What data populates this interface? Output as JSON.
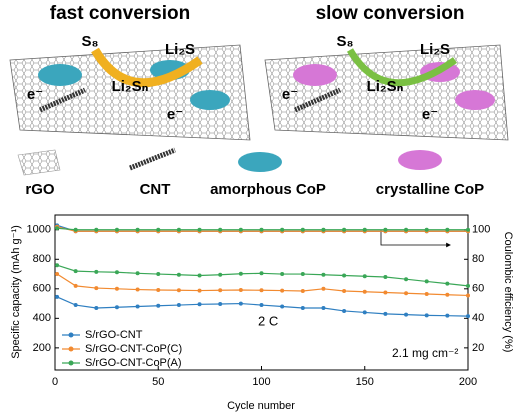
{
  "schematic": {
    "fast_title": "fast conversion",
    "slow_title": "slow conversion",
    "s8": "S₈",
    "li2s": "Li₂S",
    "li2sn": "Li₂Sₙ",
    "electron": "e⁻",
    "rgo": "rGO",
    "cnt": "CNT",
    "amorphous": "amorphous CoP",
    "crystalline": "crystalline CoP"
  },
  "chart_data": {
    "type": "line",
    "x_label": "Cycle number",
    "y_label": "Specific capacity (mAh g⁻¹)",
    "y2_label": "Coulombic efficiency (%)",
    "annotations": [
      "2 C",
      "2.1 mg cm⁻²"
    ],
    "x": [
      1,
      10,
      20,
      30,
      40,
      50,
      60,
      70,
      80,
      90,
      100,
      110,
      120,
      130,
      140,
      150,
      160,
      170,
      180,
      190,
      200
    ],
    "xlim": [
      0,
      200
    ],
    "xticks": [
      0,
      50,
      100,
      150,
      200
    ],
    "ylim": [
      50,
      1100
    ],
    "yticks": [
      200,
      400,
      600,
      800,
      1000
    ],
    "y2lim": [
      5,
      110
    ],
    "y2ticks": [
      20,
      40,
      60,
      80,
      100
    ],
    "legend": "lower left",
    "series": [
      {
        "name": "S/rGO-CNT",
        "color": "#2f7fc1",
        "values": [
          545,
          490,
          470,
          475,
          480,
          485,
          490,
          495,
          497,
          500,
          490,
          480,
          470,
          470,
          450,
          440,
          430,
          425,
          420,
          418,
          415
        ]
      },
      {
        "name": "S/rGO-CNT-CoP(C)",
        "color": "#f28a30",
        "values": [
          700,
          620,
          605,
          600,
          595,
          592,
          590,
          588,
          590,
          592,
          590,
          588,
          585,
          600,
          585,
          580,
          575,
          570,
          565,
          560,
          555
        ]
      },
      {
        "name": "S/rGO-CNT-CoP(A)",
        "color": "#3aa757",
        "values": [
          760,
          720,
          715,
          712,
          705,
          700,
          695,
          690,
          695,
          702,
          705,
          700,
          700,
          695,
          690,
          685,
          680,
          665,
          650,
          635,
          620
        ]
      },
      {
        "axis": "y2",
        "color": "#2f7fc1",
        "values": [
          103,
          99,
          99,
          99,
          99,
          99,
          99,
          99,
          99,
          99,
          99,
          99,
          99,
          99,
          99,
          99,
          99,
          99,
          99,
          99,
          99
        ]
      },
      {
        "axis": "y2",
        "color": "#f28a30",
        "values": [
          102,
          99,
          99,
          99,
          99,
          99,
          99,
          99,
          99,
          99,
          99,
          99,
          99,
          99,
          99,
          99,
          99,
          99,
          99,
          99,
          99
        ]
      },
      {
        "axis": "y2",
        "color": "#3aa757",
        "values": [
          101,
          100,
          100,
          100,
          100,
          100,
          100,
          100,
          100,
          100,
          100,
          100,
          100,
          100,
          100,
          100,
          100,
          100,
          100,
          100,
          100
        ]
      }
    ]
  }
}
